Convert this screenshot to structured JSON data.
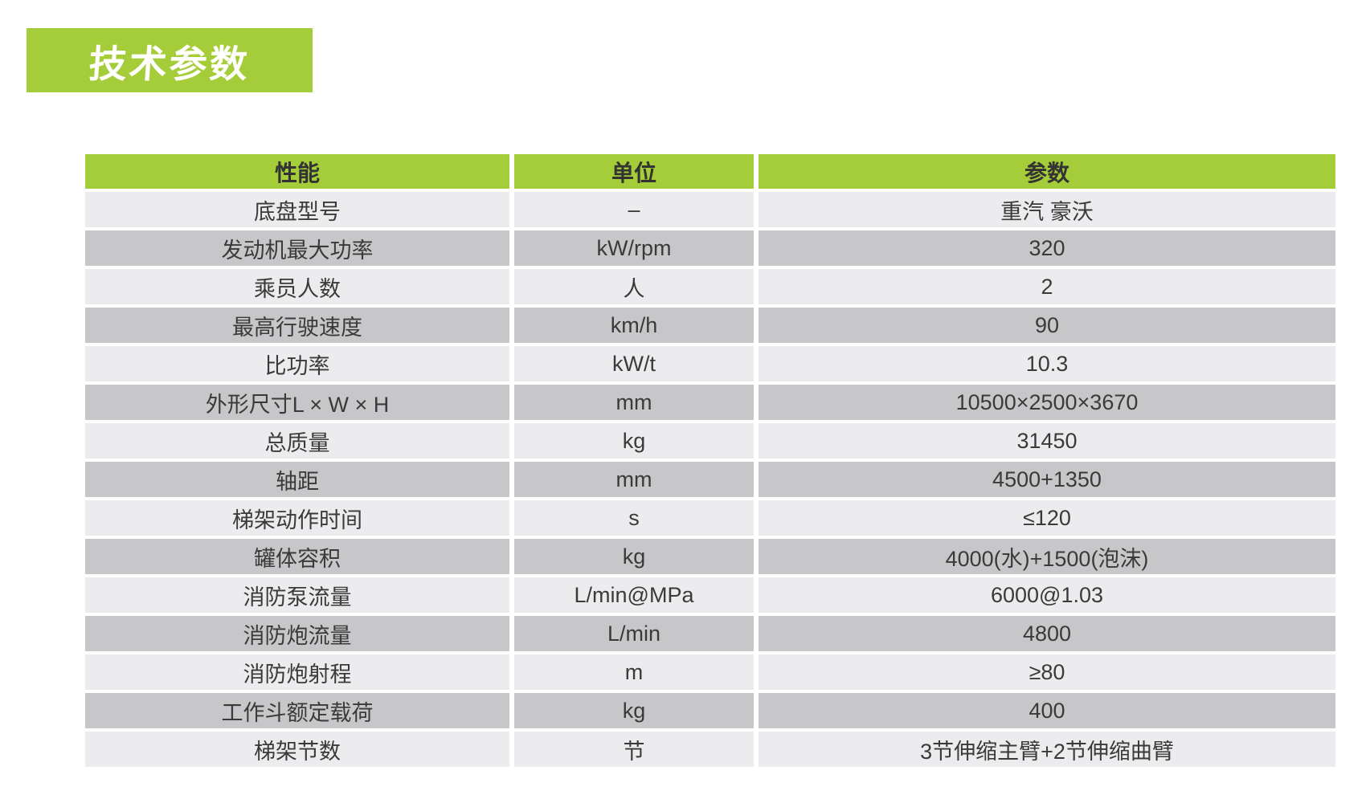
{
  "page": {
    "title": "技术参数"
  },
  "colors": {
    "accent_green": "#a5cd39",
    "row_light": "#ececee",
    "row_dark": "#c7c7c9",
    "header_text": "#333333",
    "body_text": "#3a3a3a",
    "title_text": "#ffffff"
  },
  "table": {
    "columns": [
      "性能",
      "单位",
      "参数"
    ],
    "rows": [
      {
        "performance": "底盘型号",
        "unit": "–",
        "value": "重汽 豪沃"
      },
      {
        "performance": "发动机最大功率",
        "unit": "kW/rpm",
        "value": "320"
      },
      {
        "performance": "乘员人数",
        "unit": "人",
        "value": "2"
      },
      {
        "performance": "最高行驶速度",
        "unit": "km/h",
        "value": "90"
      },
      {
        "performance": "比功率",
        "unit": "kW/t",
        "value": "10.3"
      },
      {
        "performance": "外形尺寸L × W × H",
        "unit": "mm",
        "value": "10500×2500×3670"
      },
      {
        "performance": "总质量",
        "unit": "kg",
        "value": "31450"
      },
      {
        "performance": "轴距",
        "unit": "mm",
        "value": "4500+1350"
      },
      {
        "performance": "梯架动作时间",
        "unit": "s",
        "value": "≤120"
      },
      {
        "performance": "罐体容积",
        "unit": "kg",
        "value": "4000(水)+1500(泡沫)"
      },
      {
        "performance": "消防泵流量",
        "unit": "L/min@MPa",
        "value": "6000@1.03"
      },
      {
        "performance": "消防炮流量",
        "unit": "L/min",
        "value": "4800"
      },
      {
        "performance": "消防炮射程",
        "unit": "m",
        "value": "≥80"
      },
      {
        "performance": "工作斗额定载荷",
        "unit": "kg",
        "value": "400"
      },
      {
        "performance": "梯架节数",
        "unit": "节",
        "value": "3节伸缩主臂+2节伸缩曲臂"
      }
    ]
  }
}
